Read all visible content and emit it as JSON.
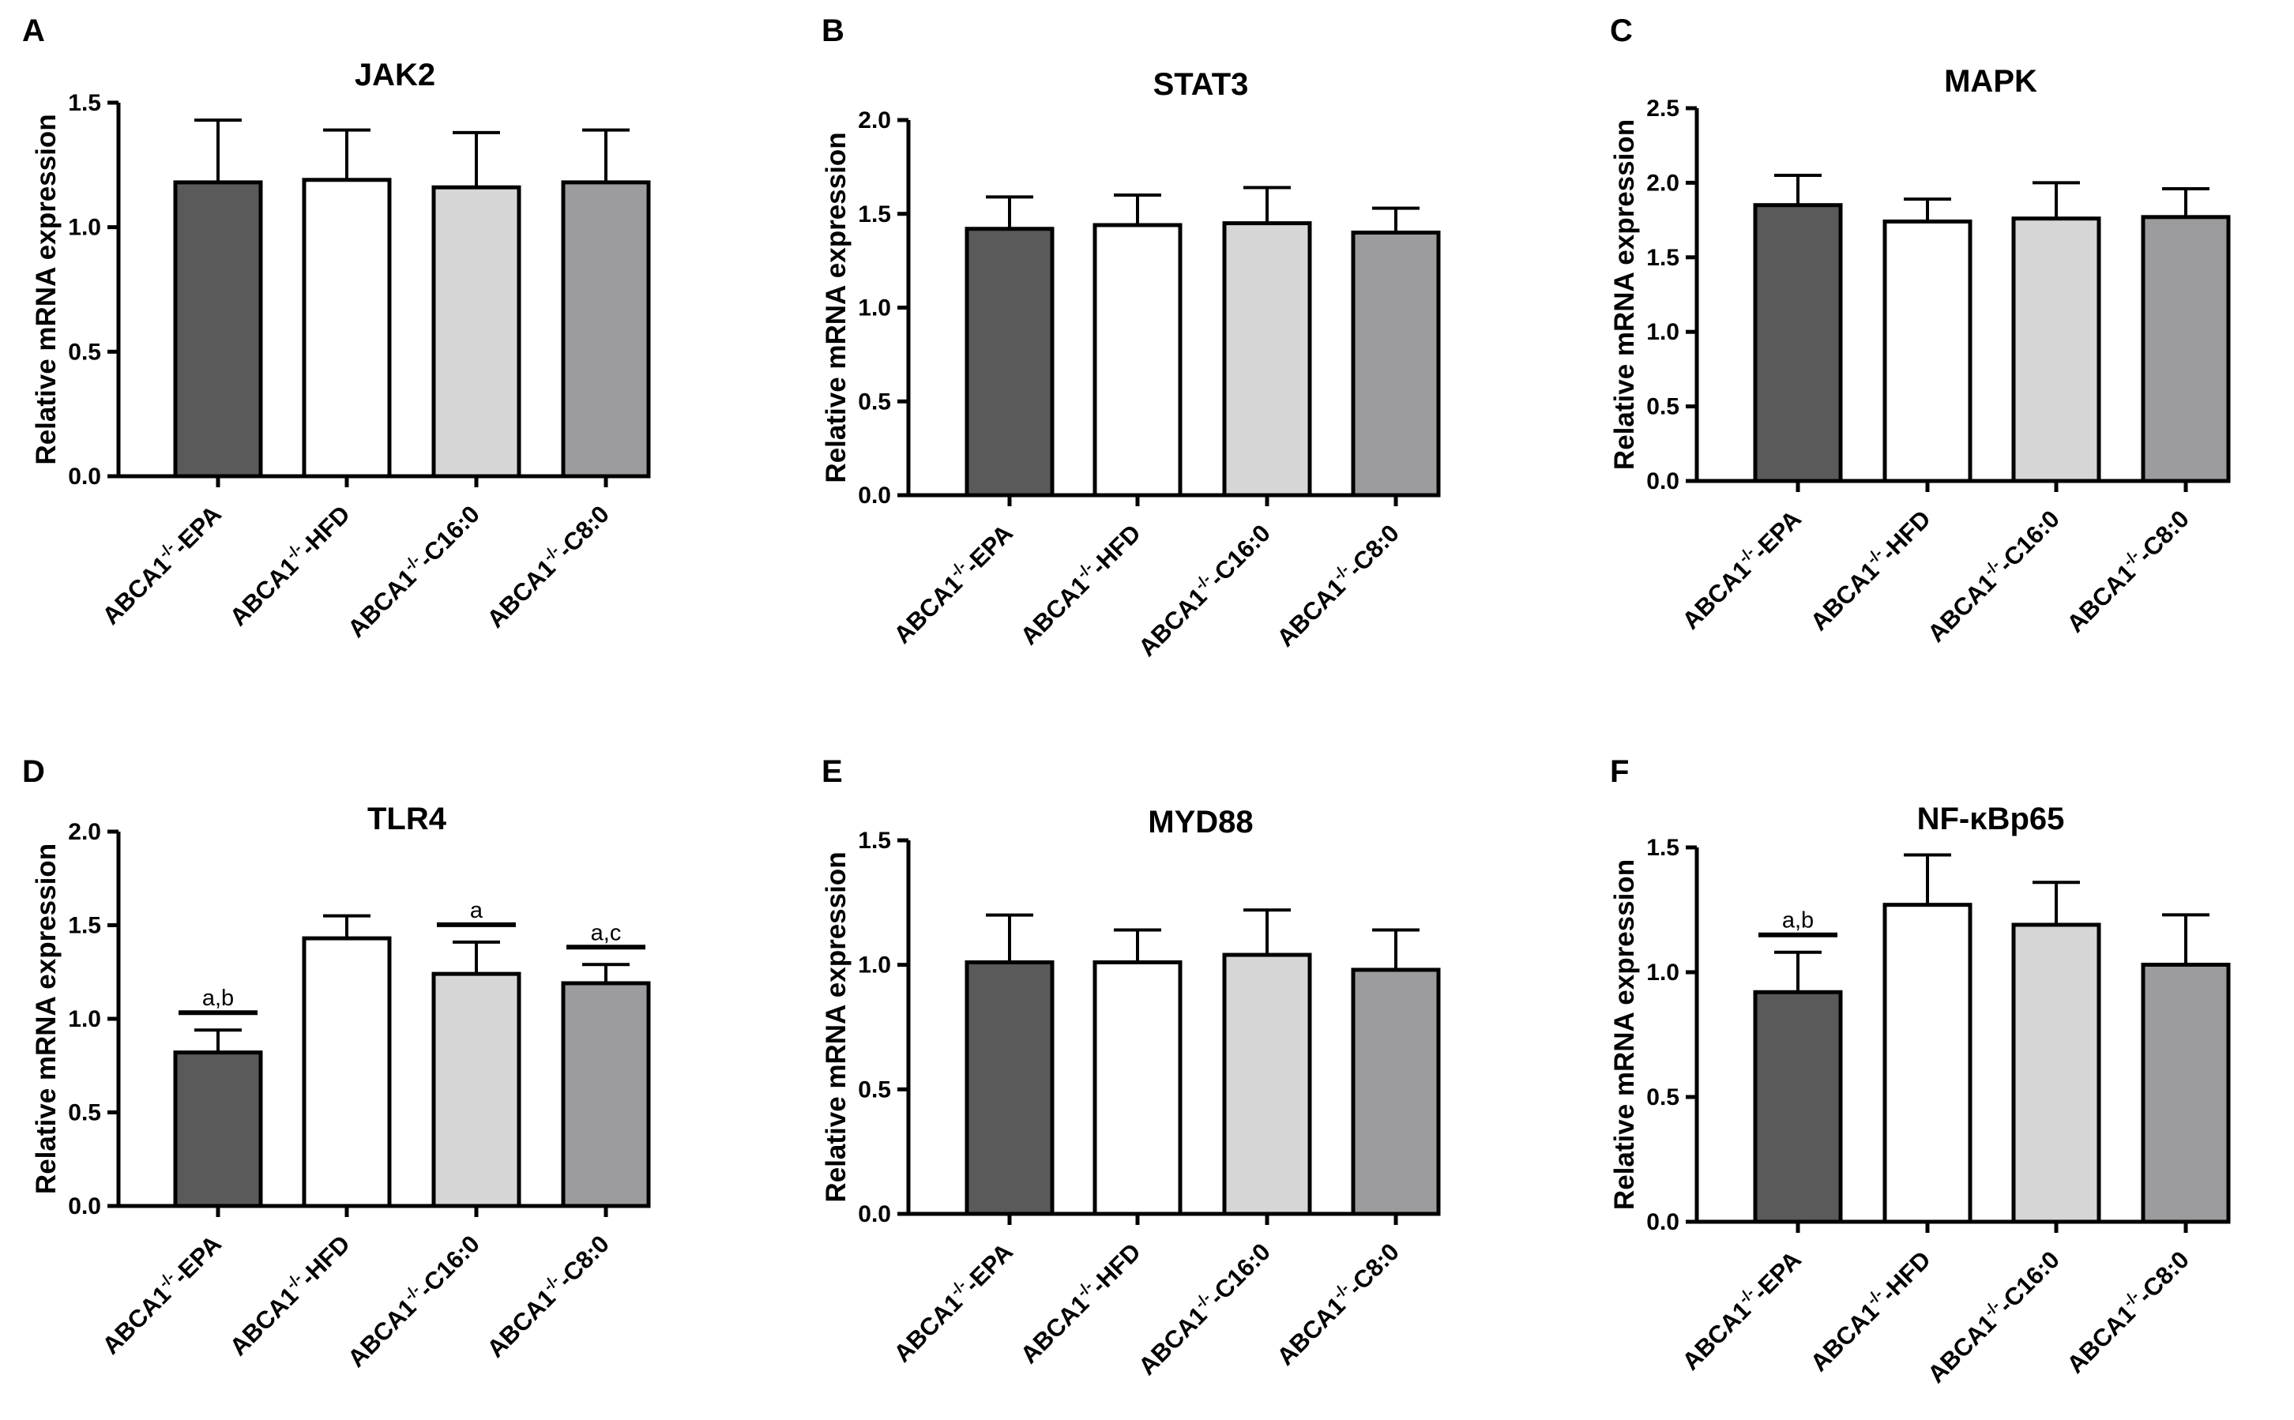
{
  "figure": {
    "colors": {
      "EPA": "#5a5a5a",
      "HFD": "#ffffff",
      "C16": "#d6d6d6",
      "C8": "#9c9c9f",
      "axis": "#000000"
    }
  },
  "chart_data": [
    {
      "panel": "A",
      "type": "bar",
      "title": "JAK2",
      "ylabel": "Relative mRNA expression",
      "xlabel": "",
      "ylim": [
        0,
        1.5
      ],
      "yticks": [
        "0.0",
        "0.5",
        "1.0",
        "1.5"
      ],
      "categories": [
        {
          "base": "ABCA1",
          "sup": "-/-",
          "suffix": "-EPA"
        },
        {
          "base": "ABCA1",
          "sup": "-/-",
          "suffix": "-HFD"
        },
        {
          "base": "ABCA1",
          "sup": "-/-",
          "suffix": "-C16:0"
        },
        {
          "base": "ABCA1",
          "sup": "-/-",
          "suffix": "-C8:0"
        }
      ],
      "values": [
        1.18,
        1.19,
        1.16,
        1.18
      ],
      "errors": [
        0.25,
        0.2,
        0.22,
        0.21
      ],
      "significance": [
        "",
        "",
        "",
        ""
      ]
    },
    {
      "panel": "B",
      "type": "bar",
      "title": "STAT3",
      "ylabel": "Relative mRNA expression",
      "xlabel": "",
      "ylim": [
        0,
        2.0
      ],
      "yticks": [
        "0.0",
        "0.5",
        "1.0",
        "1.5",
        "2.0"
      ],
      "categories": [
        {
          "base": "ABCA1",
          "sup": "-/-",
          "suffix": "-EPA"
        },
        {
          "base": "ABCA1",
          "sup": "-/-",
          "suffix": "-HFD"
        },
        {
          "base": "ABCA1",
          "sup": "-/-",
          "suffix": "-C16:0"
        },
        {
          "base": "ABCA1",
          "sup": "-/-",
          "suffix": "-C8:0"
        }
      ],
      "values": [
        1.42,
        1.44,
        1.45,
        1.4
      ],
      "errors": [
        0.17,
        0.16,
        0.19,
        0.13
      ],
      "significance": [
        "",
        "",
        "",
        ""
      ]
    },
    {
      "panel": "C",
      "type": "bar",
      "title": "MAPK",
      "ylabel": "Relative mRNA expression",
      "xlabel": "",
      "ylim": [
        0,
        2.5
      ],
      "yticks": [
        "0.0",
        "0.5",
        "1.0",
        "1.5",
        "2.0",
        "2.5"
      ],
      "categories": [
        {
          "base": "ABCA1",
          "sup": "-/-",
          "suffix": "-EPA"
        },
        {
          "base": "ABCA1",
          "sup": "-/-",
          "suffix": "-HFD"
        },
        {
          "base": "ABCA1",
          "sup": "-/-",
          "suffix": "-C16:0"
        },
        {
          "base": "ABCA1",
          "sup": "-/-",
          "suffix": "-C8:0"
        }
      ],
      "values": [
        1.85,
        1.74,
        1.76,
        1.77
      ],
      "errors": [
        0.2,
        0.15,
        0.24,
        0.19
      ],
      "significance": [
        "",
        "",
        "",
        ""
      ]
    },
    {
      "panel": "D",
      "type": "bar",
      "title": "TLR4",
      "ylabel": "Relative mRNA expression",
      "xlabel": "",
      "ylim": [
        0,
        2.0
      ],
      "yticks": [
        "0.0",
        "0.5",
        "1.0",
        "1.5",
        "2.0"
      ],
      "categories": [
        {
          "base": "ABCA1",
          "sup": "-/-",
          "suffix": "-EPA"
        },
        {
          "base": "ABCA1",
          "sup": "-/-",
          "suffix": "-HFD"
        },
        {
          "base": "ABCA1",
          "sup": "-/-",
          "suffix": "-C16:0"
        },
        {
          "base": "ABCA1",
          "sup": "-/-",
          "suffix": "-C8:0"
        }
      ],
      "values": [
        0.82,
        1.43,
        1.24,
        1.19
      ],
      "errors": [
        0.12,
        0.12,
        0.17,
        0.1
      ],
      "significance": [
        "a,b",
        "",
        "a",
        "a,c"
      ]
    },
    {
      "panel": "E",
      "type": "bar",
      "title": "MYD88",
      "ylabel": "Relative mRNA expression",
      "xlabel": "",
      "ylim": [
        0,
        1.5
      ],
      "yticks": [
        "0.0",
        "0.5",
        "1.0",
        "1.5"
      ],
      "categories": [
        {
          "base": "ABCA1",
          "sup": "-/-",
          "suffix": "-EPA"
        },
        {
          "base": "ABCA1",
          "sup": "-/-",
          "suffix": "-HFD"
        },
        {
          "base": "ABCA1",
          "sup": "-/-",
          "suffix": "-C16:0"
        },
        {
          "base": "ABCA1",
          "sup": "-/-",
          "suffix": "-C8:0"
        }
      ],
      "values": [
        1.01,
        1.01,
        1.04,
        0.98
      ],
      "errors": [
        0.19,
        0.13,
        0.18,
        0.16
      ],
      "significance": [
        "",
        "",
        "",
        ""
      ]
    },
    {
      "panel": "F",
      "type": "bar",
      "title": "NF-κBp65",
      "ylabel": "Relative mRNA expression",
      "xlabel": "",
      "ylim": [
        0,
        1.5
      ],
      "yticks": [
        "0.0",
        "0.5",
        "1.0",
        "1.5"
      ],
      "categories": [
        {
          "base": "ABCA1",
          "sup": "-/-",
          "suffix": "-EPA"
        },
        {
          "base": "ABCA1",
          "sup": "-/-",
          "suffix": "-HFD"
        },
        {
          "base": "ABCA1",
          "sup": "-/-",
          "suffix": "-C16:0"
        },
        {
          "base": "ABCA1",
          "sup": "-/-",
          "suffix": "-C8:0"
        }
      ],
      "values": [
        0.92,
        1.27,
        1.19,
        1.03
      ],
      "errors": [
        0.16,
        0.2,
        0.17,
        0.2
      ],
      "significance": [
        "a,b",
        "",
        "",
        ""
      ]
    }
  ]
}
